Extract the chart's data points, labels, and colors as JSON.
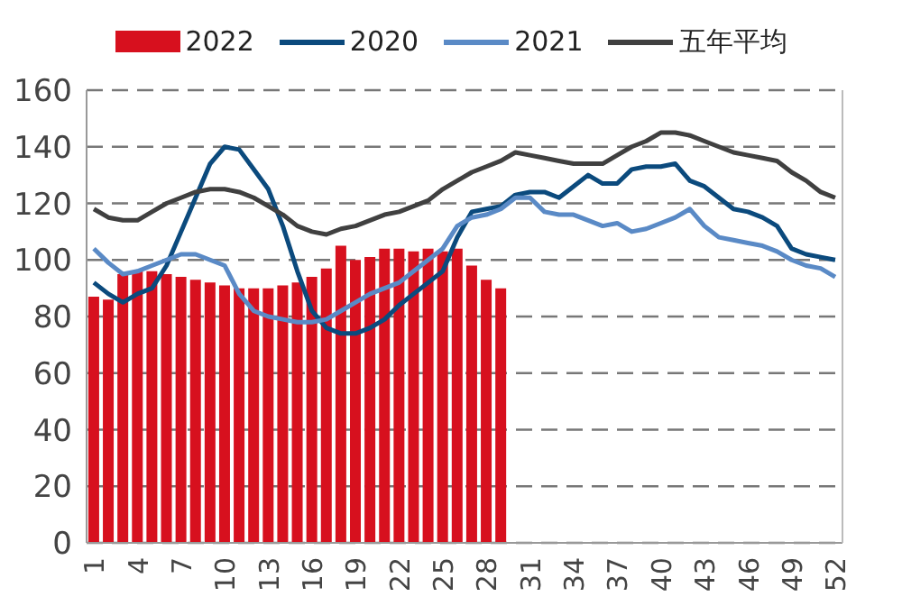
{
  "chart_data": {
    "type": "bar",
    "categories": [
      "1",
      null,
      null,
      "4",
      null,
      null,
      "7",
      null,
      null,
      "10",
      null,
      null,
      "13",
      null,
      null,
      "16",
      null,
      null,
      "19",
      null,
      null,
      "22",
      null,
      null,
      "25",
      null,
      null,
      "28",
      null,
      null,
      "31",
      null,
      null,
      "34",
      null,
      null,
      "37",
      null,
      null,
      "40",
      null,
      null,
      "43",
      null,
      null,
      "46",
      null,
      null,
      "49",
      null,
      null,
      "52"
    ],
    "series": [
      {
        "name": "2022",
        "color": "#d7101e",
        "values": [
          87,
          86,
          95,
          96,
          96,
          95,
          94,
          93,
          92,
          91,
          90,
          90,
          90,
          91,
          92,
          94,
          97,
          105,
          100,
          101,
          104,
          104,
          103,
          104,
          103,
          104,
          98,
          93,
          90,
          null,
          null,
          null,
          null,
          null,
          null,
          null,
          null,
          null,
          null,
          null,
          null,
          null,
          null,
          null,
          null,
          null,
          null,
          null,
          null,
          null,
          null,
          null
        ]
      },
      {
        "name": "2020",
        "type": "line",
        "color": "#0b4a7d",
        "values": [
          92,
          88,
          85,
          88,
          90,
          98,
          110,
          122,
          134,
          140,
          139,
          132,
          125,
          112,
          96,
          82,
          76,
          74,
          74,
          76,
          79,
          84,
          88,
          92,
          96,
          108,
          117,
          118,
          119,
          123,
          124,
          124,
          122,
          126,
          130,
          127,
          127,
          132,
          133,
          133,
          134,
          128,
          126,
          122,
          118,
          117,
          115,
          112,
          104,
          102,
          101,
          100
        ]
      },
      {
        "name": "2021",
        "type": "line",
        "color": "#5a8ac6",
        "values": [
          104,
          99,
          95,
          96,
          98,
          100,
          102,
          102,
          100,
          98,
          88,
          82,
          80,
          79,
          78,
          78,
          79,
          82,
          85,
          88,
          90,
          92,
          96,
          100,
          104,
          112,
          115,
          116,
          118,
          122,
          122,
          117,
          116,
          116,
          114,
          112,
          113,
          110,
          111,
          113,
          115,
          118,
          112,
          108,
          107,
          106,
          105,
          103,
          100,
          98,
          97,
          94
        ]
      },
      {
        "name": "五年平均",
        "type": "line",
        "color": "#404040",
        "values": [
          118,
          115,
          114,
          114,
          117,
          120,
          122,
          124,
          125,
          125,
          124,
          122,
          119,
          116,
          112,
          110,
          109,
          111,
          112,
          114,
          116,
          117,
          119,
          121,
          125,
          128,
          131,
          133,
          135,
          138,
          137,
          136,
          135,
          134,
          134,
          134,
          137,
          140,
          142,
          145,
          145,
          144,
          142,
          140,
          138,
          137,
          136,
          135,
          131,
          128,
          124,
          122
        ]
      }
    ],
    "ylim": [
      0,
      160
    ],
    "yticks": [
      0,
      20,
      40,
      60,
      80,
      100,
      120,
      140,
      160
    ],
    "grid": "y",
    "legend": "top"
  }
}
